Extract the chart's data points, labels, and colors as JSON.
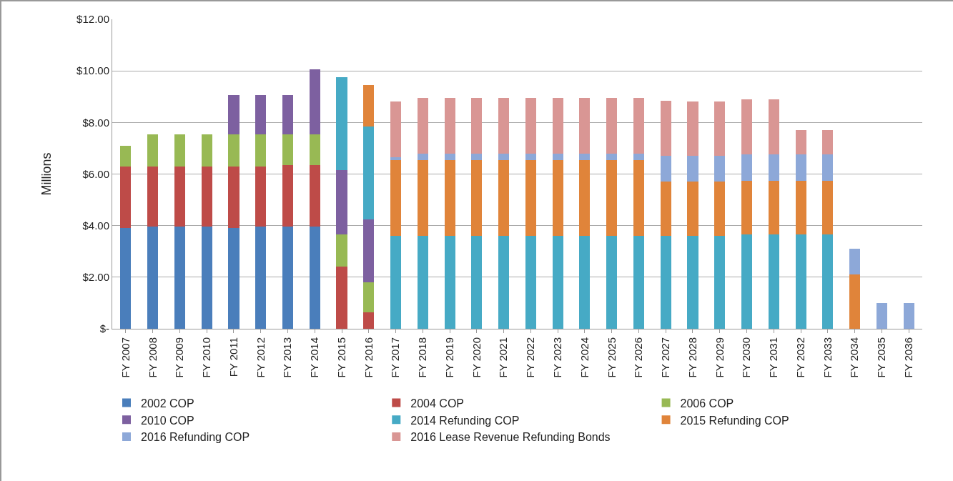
{
  "chart_data": {
    "type": "bar",
    "stacked": true,
    "ylabel": "Millions",
    "categories": [
      "FY 2007",
      "FY 2008",
      "FY 2009",
      "FY 2010",
      "FY 2011",
      "FY 2012",
      "FY 2013",
      "FY 2014",
      "FY 2015",
      "FY 2016",
      "FY 2017",
      "FY 2018",
      "FY 2019",
      "FY 2020",
      "FY 2021",
      "FY 2022",
      "FY 2023",
      "FY 2024",
      "FY 2025",
      "FY 2026",
      "FY 2027",
      "FY 2028",
      "FY 2029",
      "FY 2030",
      "FY 2031",
      "FY 2032",
      "FY 2033",
      "FY 2034",
      "FY 2035",
      "FY 2036"
    ],
    "series": [
      {
        "name": "2002 COP",
        "color": "#4a7ebb",
        "values": [
          3.9,
          3.95,
          3.95,
          3.95,
          3.9,
          3.95,
          3.95,
          3.95,
          null,
          null,
          null,
          null,
          null,
          null,
          null,
          null,
          null,
          null,
          null,
          null,
          null,
          null,
          null,
          null,
          null,
          null,
          null,
          null,
          null,
          null
        ]
      },
      {
        "name": "2004 COP",
        "color": "#be4b48",
        "values": [
          2.4,
          2.35,
          2.35,
          2.35,
          2.4,
          2.35,
          2.4,
          2.4,
          2.4,
          0.65,
          null,
          null,
          null,
          null,
          null,
          null,
          null,
          null,
          null,
          null,
          null,
          null,
          null,
          null,
          null,
          null,
          null,
          null,
          null,
          null
        ]
      },
      {
        "name": "2006 COP",
        "color": "#98b954",
        "values": [
          0.8,
          1.25,
          1.25,
          1.25,
          1.25,
          1.25,
          1.2,
          1.2,
          1.25,
          1.15,
          null,
          null,
          null,
          null,
          null,
          null,
          null,
          null,
          null,
          null,
          null,
          null,
          null,
          null,
          null,
          null,
          null,
          null,
          null,
          null
        ]
      },
      {
        "name": "2010 COP",
        "color": "#7d60a0",
        "values": [
          null,
          null,
          null,
          null,
          1.5,
          1.5,
          1.5,
          2.5,
          2.5,
          2.45,
          null,
          null,
          null,
          null,
          null,
          null,
          null,
          null,
          null,
          null,
          null,
          null,
          null,
          null,
          null,
          null,
          null,
          null,
          null,
          null
        ]
      },
      {
        "name": "2014 Refunding COP",
        "color": "#46aac5",
        "values": [
          null,
          null,
          null,
          null,
          null,
          null,
          null,
          null,
          3.6,
          3.6,
          3.6,
          3.6,
          3.6,
          3.6,
          3.6,
          3.6,
          3.6,
          3.6,
          3.6,
          3.6,
          3.6,
          3.6,
          3.6,
          3.65,
          3.65,
          3.65,
          3.65,
          null,
          null,
          null
        ]
      },
      {
        "name": "2015 Refunding COP",
        "color": "#e0843a",
        "values": [
          null,
          null,
          null,
          null,
          null,
          null,
          null,
          null,
          null,
          1.6,
          2.95,
          2.95,
          2.95,
          2.95,
          2.95,
          2.95,
          2.95,
          2.95,
          2.95,
          2.95,
          2.1,
          2.1,
          2.1,
          2.1,
          2.1,
          2.1,
          2.1,
          2.1,
          null,
          null
        ]
      },
      {
        "name": "2016 Refunding COP",
        "color": "#8da8d8",
        "values": [
          null,
          null,
          null,
          null,
          null,
          null,
          null,
          null,
          null,
          null,
          0.1,
          0.25,
          0.25,
          0.25,
          0.25,
          0.25,
          0.25,
          0.25,
          0.25,
          0.25,
          1.0,
          1.0,
          1.0,
          1.0,
          1.0,
          1.0,
          1.0,
          1.0,
          1.0,
          1.0
        ]
      },
      {
        "name": "2016 Lease Revenue Refunding Bonds",
        "color": "#d99694",
        "values": [
          null,
          null,
          null,
          null,
          null,
          null,
          null,
          null,
          null,
          null,
          2.15,
          2.15,
          2.15,
          2.15,
          2.15,
          2.15,
          2.15,
          2.15,
          2.15,
          2.15,
          2.15,
          2.1,
          2.1,
          2.15,
          2.15,
          0.95,
          0.95,
          null,
          null,
          null
        ]
      }
    ],
    "ylim": [
      0,
      12
    ],
    "yticks": [
      {
        "value": 0,
        "label": "$-"
      },
      {
        "value": 2,
        "label": "$2.00"
      },
      {
        "value": 4,
        "label": "$4.00"
      },
      {
        "value": 6,
        "label": "$6.00"
      },
      {
        "value": 8,
        "label": "$8.00"
      },
      {
        "value": 10,
        "label": "$10.00"
      },
      {
        "value": 12,
        "label": "$12.00"
      }
    ],
    "grid": "y",
    "legend": "bottom"
  }
}
